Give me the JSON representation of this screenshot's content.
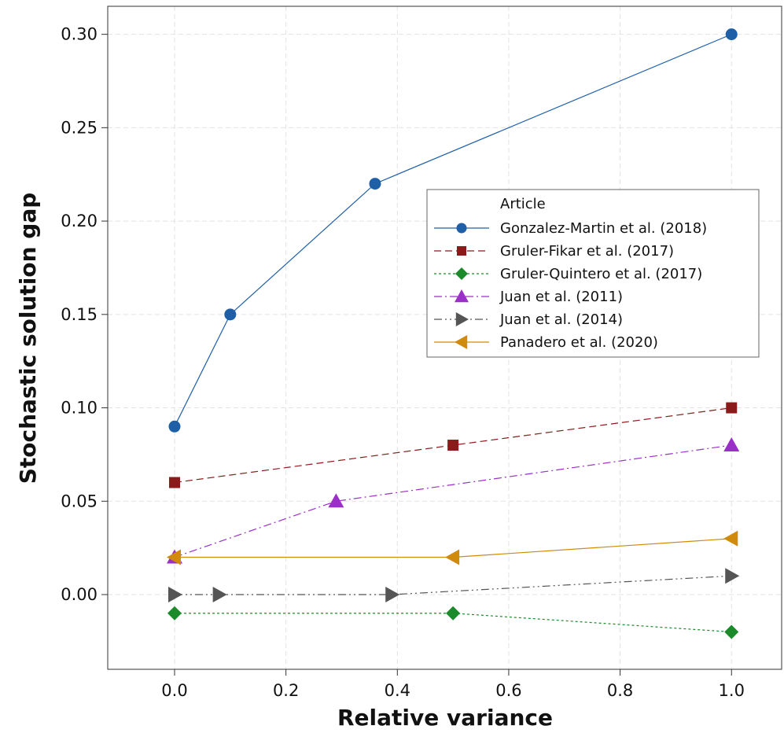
{
  "chart_data": {
    "type": "line",
    "xlabel": "Relative variance",
    "ylabel": "Stochastic solution gap",
    "xlim": [
      -0.12,
      1.09
    ],
    "ylim": [
      -0.04,
      0.315
    ],
    "x_ticks": [
      "0.0",
      "0.2",
      "0.4",
      "0.6",
      "0.8",
      "1.0"
    ],
    "y_ticks": [
      "0.00",
      "0.05",
      "0.10",
      "0.15",
      "0.20",
      "0.25",
      "0.30"
    ],
    "grid": true,
    "legend": {
      "title": "Article",
      "position": "upper-right"
    },
    "series": [
      {
        "name": "Gonzalez-Martin et al. (2018)",
        "color": "#1f5fa8",
        "marker": "circle",
        "line": "solid",
        "points": [
          [
            0.0,
            0.09
          ],
          [
            0.1,
            0.15
          ],
          [
            0.36,
            0.22
          ],
          [
            1.0,
            0.3
          ]
        ]
      },
      {
        "name": "Gruler-Fikar et al. (2017)",
        "color": "#8b1a1a",
        "marker": "square",
        "line": "dashed",
        "points": [
          [
            0.0,
            0.06
          ],
          [
            0.5,
            0.08
          ],
          [
            1.0,
            0.1
          ]
        ]
      },
      {
        "name": "Gruler-Quintero et al. (2017)",
        "color": "#1a8a2a",
        "marker": "diamond",
        "line": "dotted",
        "points": [
          [
            0.0,
            -0.01
          ],
          [
            0.5,
            -0.01
          ],
          [
            1.0,
            -0.02
          ]
        ]
      },
      {
        "name": "Juan et al. (2011)",
        "color": "#9b30c8",
        "marker": "triangle-up",
        "line": "dashdot",
        "points": [
          [
            0.0,
            0.02
          ],
          [
            0.29,
            0.05
          ],
          [
            1.0,
            0.08
          ]
        ]
      },
      {
        "name": "Juan et al. (2014)",
        "color": "#555555",
        "marker": "triangle-right",
        "line": "dashdotdot",
        "points": [
          [
            0.0,
            0.0
          ],
          [
            0.08,
            0.0
          ],
          [
            0.39,
            0.0
          ],
          [
            1.0,
            0.01
          ]
        ]
      },
      {
        "name": "Panadero et al. (2020)",
        "color": "#d08a0c",
        "marker": "triangle-left",
        "line": "solid",
        "points": [
          [
            0.0,
            0.02
          ],
          [
            0.5,
            0.02
          ],
          [
            1.0,
            0.03
          ]
        ]
      }
    ]
  }
}
